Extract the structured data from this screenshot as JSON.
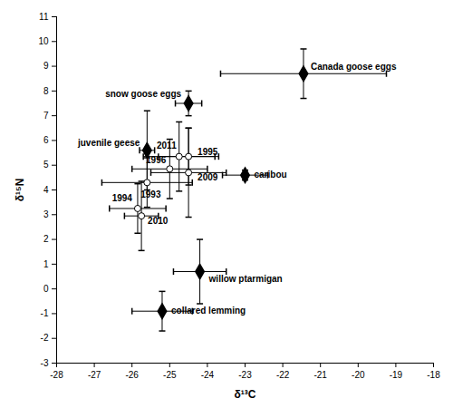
{
  "chart_data": {
    "type": "scatter",
    "x_label": "δ¹³C",
    "y_label": "δ¹⁵N",
    "xlim": [
      -28,
      -18
    ],
    "xticks": [
      -28,
      -27,
      -26,
      -25,
      -24,
      -23,
      -22,
      -21,
      -20,
      -19,
      -18
    ],
    "ylim": [
      -3,
      11
    ],
    "yticks": [
      -3,
      -2,
      -1,
      0,
      1,
      2,
      3,
      4,
      5,
      6,
      7,
      8,
      9,
      10,
      11
    ],
    "grid": false,
    "series": [
      {
        "marker": "diamond",
        "color": "#000000",
        "labels": [
          "Canada goose eggs",
          "snow goose eggs",
          "juvenile geese",
          "caribou",
          "willow ptarmigan",
          "collared lemming"
        ],
        "x": [
          -21.45,
          -24.5,
          -25.6,
          -23.0,
          -24.2,
          -25.2
        ],
        "values": [
          8.7,
          7.5,
          5.6,
          4.6,
          0.7,
          -0.9
        ],
        "x_error": [
          2.2,
          0.35,
          0.2,
          0.6,
          0.7,
          0.8
        ],
        "y_error": [
          1.0,
          0.5,
          1.6,
          0.2,
          1.3,
          0.8
        ]
      },
      {
        "marker": "circle_open",
        "color": "#000000",
        "labels": [
          "2011",
          "1995",
          "1996",
          "2009",
          "1993",
          "1994",
          "2010"
        ],
        "x": [
          -24.75,
          -24.5,
          -25.0,
          -24.5,
          -25.6,
          -25.85,
          -25.75
        ],
        "values": [
          5.35,
          5.35,
          4.85,
          4.7,
          4.3,
          3.25,
          2.95
        ],
        "x_error": [
          0.95,
          0.8,
          1.0,
          1.0,
          1.2,
          0.75,
          0.45
        ],
        "y_error": [
          1.4,
          1.15,
          1.2,
          1.8,
          1.0,
          1.0,
          1.4
        ]
      }
    ]
  }
}
